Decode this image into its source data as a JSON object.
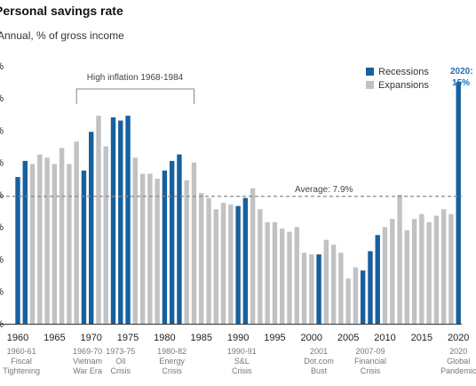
{
  "title": "Personal savings rate",
  "subtitle": "Annual, % of gross income",
  "legend": {
    "recession_label": "Recessions",
    "expansion_label": "Expansions"
  },
  "colors": {
    "recession": "#17609e",
    "expansion": "#c2c2c2",
    "average_line": "#8a8a8a"
  },
  "annotations": {
    "inflation": "High inflation 1968-1984",
    "average": "Average: 7.9%",
    "callout_year": "2020:",
    "callout_value": "15%"
  },
  "events": [
    {
      "year": 1960.5,
      "lines": [
        "1960-61",
        "Fiscal",
        "Tightening"
      ]
    },
    {
      "year": 1969.5,
      "lines": [
        "1969-70",
        "Vietnam",
        "War Era"
      ]
    },
    {
      "year": 1974,
      "lines": [
        "1973-75",
        "Oil",
        "Crisis"
      ]
    },
    {
      "year": 1981,
      "lines": [
        "1980-82",
        "Energy",
        "Crisis"
      ]
    },
    {
      "year": 1990.5,
      "lines": [
        "1990-91",
        "S&L",
        "Crisis"
      ]
    },
    {
      "year": 2001,
      "lines": [
        "2001",
        "Dot.com",
        "Bust"
      ]
    },
    {
      "year": 2008,
      "lines": [
        "2007-09",
        "Financial",
        "Crisis"
      ]
    },
    {
      "year": 2020,
      "lines": [
        "2020",
        "Global",
        "Pandemic"
      ]
    }
  ],
  "chart_data": {
    "type": "bar",
    "title": "Personal savings rate",
    "subtitle": "Annual, % of gross income",
    "xlabel": "",
    "ylabel": "",
    "ylim": [
      0,
      16
    ],
    "xlim": [
      1959.5,
      2020.5
    ],
    "x_ticks": [
      1960,
      1965,
      1970,
      1975,
      1980,
      1985,
      1990,
      1995,
      2000,
      2005,
      2010,
      2015,
      2020
    ],
    "average": 7.9,
    "legend_position": "top-right",
    "grid": false,
    "x": [
      1960,
      1961,
      1962,
      1963,
      1964,
      1965,
      1966,
      1967,
      1968,
      1969,
      1970,
      1971,
      1972,
      1973,
      1974,
      1975,
      1976,
      1977,
      1978,
      1979,
      1980,
      1981,
      1982,
      1983,
      1984,
      1985,
      1986,
      1987,
      1988,
      1989,
      1990,
      1991,
      1992,
      1993,
      1994,
      1995,
      1996,
      1997,
      1998,
      1999,
      2000,
      2001,
      2002,
      2003,
      2004,
      2005,
      2006,
      2007,
      2008,
      2009,
      2010,
      2011,
      2012,
      2013,
      2014,
      2015,
      2016,
      2017,
      2018,
      2019,
      2020
    ],
    "values": [
      9.1,
      10.1,
      9.9,
      10.5,
      10.3,
      9.9,
      10.9,
      9.9,
      11.3,
      9.5,
      11.9,
      12.9,
      11.0,
      12.8,
      12.6,
      12.9,
      10.3,
      9.3,
      9.3,
      9.0,
      9.5,
      10.1,
      10.5,
      8.9,
      10.0,
      8.1,
      7.8,
      7.1,
      7.5,
      7.4,
      7.3,
      7.8,
      8.4,
      7.1,
      6.3,
      6.3,
      5.9,
      5.7,
      6.0,
      4.4,
      4.3,
      4.3,
      5.2,
      4.9,
      4.4,
      2.8,
      3.5,
      3.3,
      4.5,
      5.5,
      6.0,
      6.5,
      8.0,
      5.8,
      6.5,
      6.8,
      6.3,
      6.7,
      7.1,
      6.8,
      15.0
    ],
    "series_type": [
      "recession",
      "recession",
      "expansion",
      "expansion",
      "expansion",
      "expansion",
      "expansion",
      "expansion",
      "expansion",
      "recession",
      "recession",
      "expansion",
      "expansion",
      "recession",
      "recession",
      "recession",
      "expansion",
      "expansion",
      "expansion",
      "expansion",
      "recession",
      "recession",
      "recession",
      "expansion",
      "expansion",
      "expansion",
      "expansion",
      "expansion",
      "expansion",
      "expansion",
      "recession",
      "recession",
      "expansion",
      "expansion",
      "expansion",
      "expansion",
      "expansion",
      "expansion",
      "expansion",
      "expansion",
      "expansion",
      "recession",
      "expansion",
      "expansion",
      "expansion",
      "expansion",
      "expansion",
      "recession",
      "recession",
      "recession",
      "expansion",
      "expansion",
      "expansion",
      "expansion",
      "expansion",
      "expansion",
      "expansion",
      "expansion",
      "expansion",
      "expansion",
      "recession"
    ],
    "series": [
      {
        "name": "Recessions"
      },
      {
        "name": "Expansions"
      }
    ]
  }
}
